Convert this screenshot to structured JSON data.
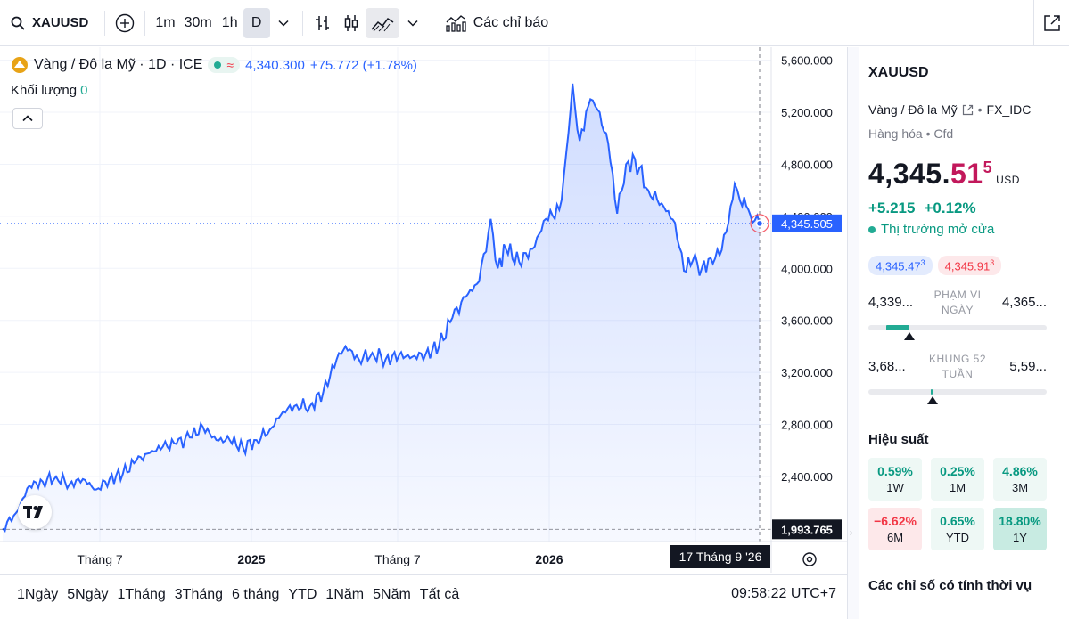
{
  "toolbar": {
    "symbol": "XAUUSD",
    "intervals": [
      "1m",
      "30m",
      "1h",
      "D"
    ],
    "active_interval": "D",
    "indicators_label": "Các chỉ báo"
  },
  "legend": {
    "title": "Vàng / Đô la Mỹ · 1D · ICE",
    "price": "4,340.300",
    "change": "+75.772 (+1.78%)",
    "volume_label": "Khối lượng",
    "volume_value": "0"
  },
  "price_axis": {
    "labels": [
      "5,600.000",
      "5,200.000",
      "4,800.000",
      "4,400.000",
      "4,000.000",
      "3,600.000",
      "3,200.000",
      "2,800.000",
      "2,400.000"
    ],
    "current_label": "4,345.505",
    "low_label": "1,993.765"
  },
  "time_axis": {
    "labels": [
      "Tháng 7",
      "2025",
      "Tháng 7",
      "2026"
    ],
    "crosshair_label": "17 Tháng 9 '26"
  },
  "chart_data": {
    "type": "area",
    "y_range": [
      1900,
      5700
    ],
    "x_range": [
      0,
      850
    ],
    "line_color": "#2962ff",
    "series": [
      {
        "x": [
          0,
          15,
          30,
          45,
          60,
          75,
          90,
          105,
          120,
          135,
          150,
          165,
          180,
          195,
          210,
          225,
          240,
          255,
          270,
          285,
          300,
          315,
          330,
          345,
          360,
          375,
          385,
          400,
          415,
          430,
          445,
          460,
          475,
          490,
          505,
          520,
          535,
          548,
          556,
          565,
          580,
          595,
          610,
          625,
          633,
          640,
          648,
          660,
          668,
          680,
          690,
          700,
          710,
          725,
          740,
          755,
          765,
          775,
          785,
          795,
          805,
          815,
          822,
          828,
          835,
          842,
          850
        ],
        "values": [
          2000,
          2120,
          2330,
          2360,
          2400,
          2340,
          2380,
          2300,
          2380,
          2420,
          2520,
          2580,
          2630,
          2650,
          2700,
          2780,
          2680,
          2680,
          2620,
          2680,
          2760,
          2900,
          2950,
          2940,
          3050,
          3300,
          3400,
          3300,
          3350,
          3300,
          3330,
          3320,
          3340,
          3400,
          3620,
          3780,
          3900,
          4380,
          4000,
          4150,
          4050,
          4150,
          4380,
          4450,
          4900,
          5420,
          4980,
          5300,
          5220,
          4960,
          4420,
          4800,
          4840,
          4600,
          4500,
          4350,
          3980,
          4060,
          4000,
          4080,
          4100,
          4350,
          4650,
          4520,
          4480,
          4350,
          4345
        ]
      }
    ]
  },
  "range_bar": {
    "items": [
      "1Ngày",
      "5Ngày",
      "1Tháng",
      "3Tháng",
      "6 tháng",
      "YTD",
      "1Năm",
      "5Năm",
      "Tất cả"
    ],
    "clock": "09:58:22 UTC+7"
  },
  "panel": {
    "symbol": "XAUUSD",
    "description": "Vàng / Đô la Mỹ",
    "exchange": "FX_IDC",
    "type": "Hàng hóa",
    "subtype": "Cfd",
    "price_main": "4,345.",
    "price_red": "51",
    "price_sup": "5",
    "currency": "USD",
    "change_abs": "+5.215",
    "change_pct": "+0.12%",
    "status": "Thị trường mở cửa",
    "bid": "4,345.47",
    "bid_sup": "3",
    "ask": "4,345.91",
    "ask_sup": "3",
    "day_range": {
      "low": "4,339...",
      "high": "4,365...",
      "label": "PHẠM VI NGÀY",
      "position": 0.23
    },
    "week52_range": {
      "low": "3,68...",
      "high": "5,59...",
      "label": "KHUNG 52 TUẦN",
      "position": 0.36
    },
    "performance_title": "Hiệu suất",
    "performance": [
      {
        "value": "0.59%",
        "label": "1W",
        "tone": "pos"
      },
      {
        "value": "0.25%",
        "label": "1M",
        "tone": "pos"
      },
      {
        "value": "4.86%",
        "label": "3M",
        "tone": "pos"
      },
      {
        "value": "−6.62%",
        "label": "6M",
        "tone": "neg"
      },
      {
        "value": "0.65%",
        "label": "YTD",
        "tone": "pos"
      },
      {
        "value": "18.80%",
        "label": "1Y",
        "tone": "pos-strong"
      }
    ],
    "seasonal_title": "Các chỉ số có tính thời vụ"
  }
}
